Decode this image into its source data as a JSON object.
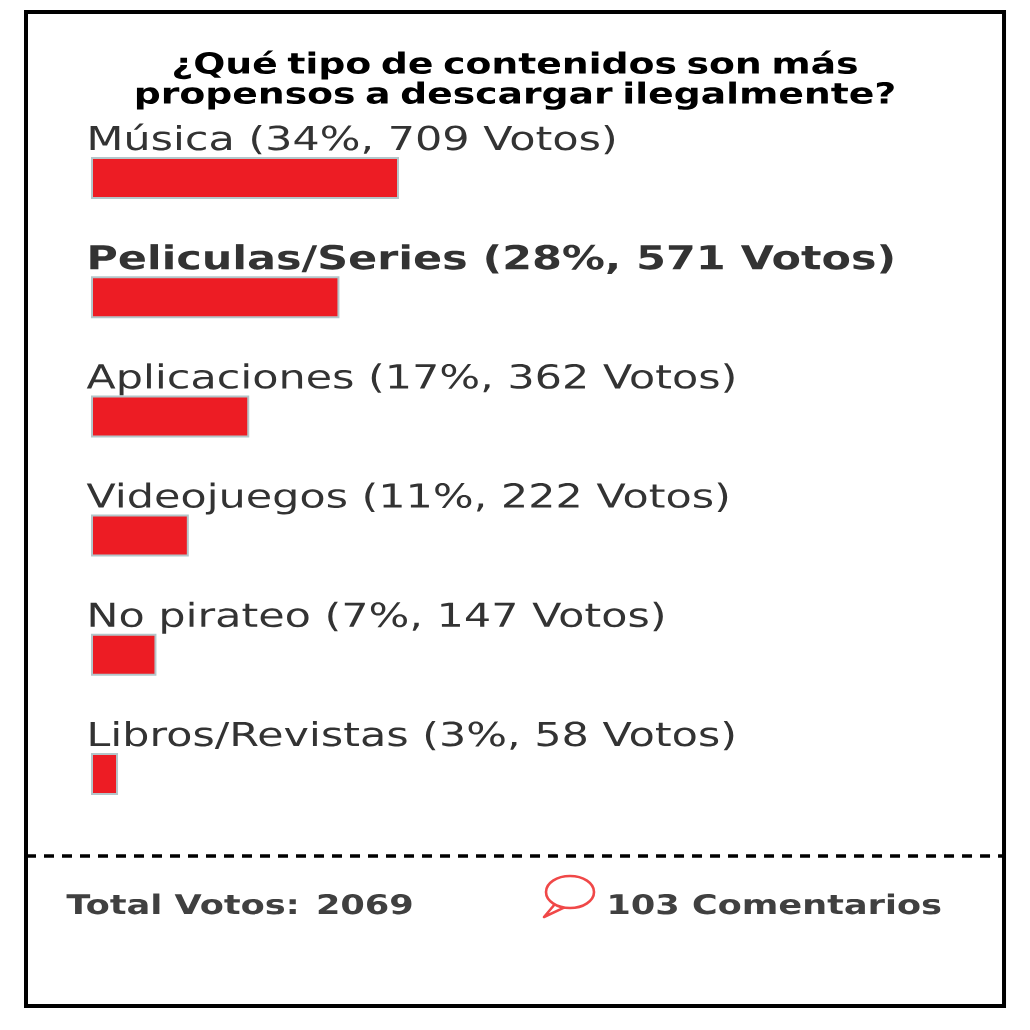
{
  "chart_data": {
    "type": "bar",
    "orientation": "horizontal",
    "title": "¿Qué tipo de contenidos son más propensos a descargar ilegalmente?",
    "categories": [
      null,
      null,
      null,
      null,
      null,
      null
    ],
    "values": [
      709,
      571,
      362,
      222,
      147,
      58
    ],
    "value_labels": [
      "Música (34%, 709 Votos)",
      "**Peliculas/Series (28%, 571 Votos)**",
      "Aplicaciones (17%, 362 Votos)",
      "Videojuegos (11%, 222 Votos)",
      "No pirateo (7%, 147 Votos)",
      "Libros/Revistas (3%, 58 Votos)"
    ],
    "color": "#ed1c24",
    "annotations": [
      "Total Votos: 2069",
      "103 Comentarios"
    ]
  }
}
